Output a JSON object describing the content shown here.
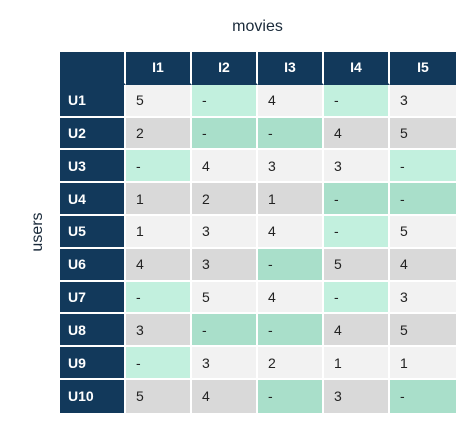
{
  "title": "movies",
  "row_axis": "users",
  "table": {
    "header": [
      "I1",
      "I2",
      "I3",
      "I4",
      "I5"
    ],
    "rows": [
      {
        "label": "U1",
        "cells": [
          5,
          "-",
          4,
          "-",
          3
        ]
      },
      {
        "label": "U2",
        "cells": [
          2,
          "-",
          "-",
          4,
          5
        ]
      },
      {
        "label": "U3",
        "cells": [
          "-",
          4,
          3,
          3,
          "-"
        ]
      },
      {
        "label": "U4",
        "cells": [
          1,
          2,
          1,
          "-",
          "-"
        ]
      },
      {
        "label": "U5",
        "cells": [
          1,
          3,
          4,
          "-",
          5
        ]
      },
      {
        "label": "U6",
        "cells": [
          4,
          3,
          "-",
          5,
          4
        ]
      },
      {
        "label": "U7",
        "cells": [
          "-",
          5,
          4,
          "-",
          3
        ]
      },
      {
        "label": "U8",
        "cells": [
          3,
          "-",
          "-",
          4,
          5
        ]
      },
      {
        "label": "U9",
        "cells": [
          "-",
          3,
          2,
          1,
          1
        ]
      },
      {
        "label": "U10",
        "cells": [
          5,
          4,
          "-",
          3,
          "-"
        ]
      }
    ]
  }
}
